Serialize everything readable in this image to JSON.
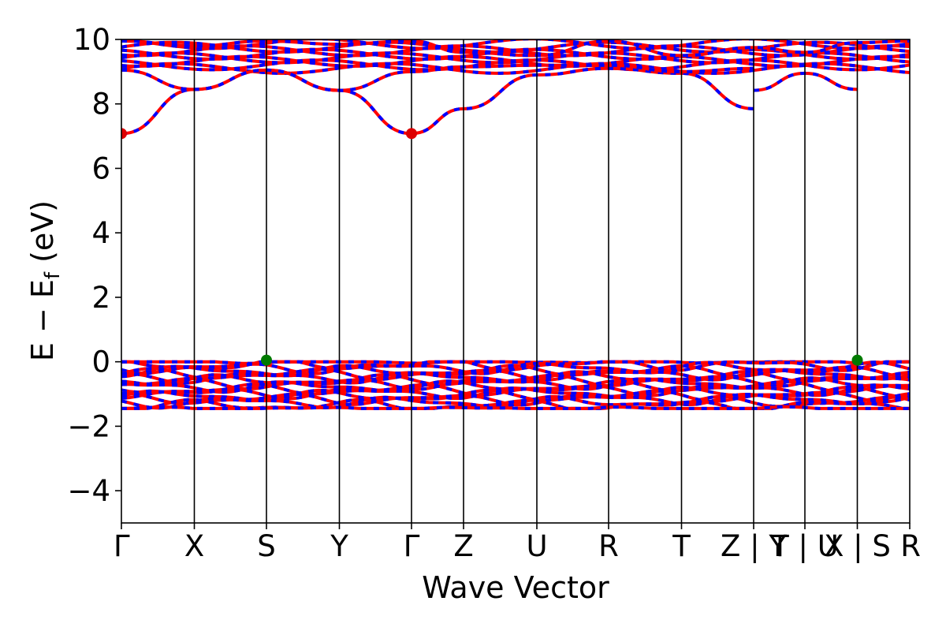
{
  "chart_data": {
    "type": "line",
    "title": "",
    "xlabel": "Wave Vector",
    "ylabel_parts": {
      "main": "E − E",
      "sub": "f",
      "unit": " (eV)"
    },
    "ylim": [
      -5,
      10
    ],
    "yticks": [
      -4,
      -2,
      0,
      2,
      4,
      6,
      8,
      10
    ],
    "ytick_labels": [
      "−4",
      "−2",
      "0",
      "2",
      "4",
      "6",
      "8",
      "10"
    ],
    "kpoints": [
      {
        "label": "Γ",
        "x": 0.0
      },
      {
        "label": "X",
        "x": 0.0925
      },
      {
        "label": "S",
        "x": 0.184
      },
      {
        "label": "Y",
        "x": 0.2765
      },
      {
        "label": "Γ",
        "x": 0.368
      },
      {
        "label": "Z",
        "x": 0.434
      },
      {
        "label": "U",
        "x": 0.527
      },
      {
        "label": "R",
        "x": 0.618
      },
      {
        "label": "T",
        "x": 0.7105
      },
      {
        "label": "Z | Y",
        "x": 0.802
      },
      {
        "label": "T | U",
        "x": 0.867
      },
      {
        "label": "X | S",
        "x": 0.9335
      },
      {
        "label": "R",
        "x": 1.0
      }
    ],
    "band_colors": {
      "spin_up": "#ff0000",
      "spin_down": "#0000ff"
    },
    "valence_band": {
      "top": 0.0,
      "bottom": -1.45
    },
    "conduction_bands": [
      {
        "name": "cb1",
        "points": [
          [
            0.0,
            7.08
          ],
          [
            0.0925,
            8.45
          ],
          [
            0.184,
            9.05
          ],
          [
            0.2765,
            8.42
          ],
          [
            0.368,
            7.08
          ],
          [
            0.434,
            7.85
          ],
          [
            0.527,
            8.9
          ],
          [
            0.618,
            9.1
          ],
          [
            0.7105,
            8.95
          ],
          [
            0.802,
            7.85
          ]
        ]
      },
      {
        "name": "cb1b",
        "points": [
          [
            0.802,
            8.42
          ],
          [
            0.867,
            8.95
          ],
          [
            0.9335,
            8.45
          ]
        ]
      },
      {
        "name": "cb2",
        "points": [
          [
            0.0,
            9.05
          ],
          [
            0.0925,
            8.45
          ],
          [
            0.184,
            9.05
          ],
          [
            0.2765,
            8.42
          ],
          [
            0.368,
            9.0
          ],
          [
            0.434,
            9.15
          ],
          [
            0.527,
            9.2
          ],
          [
            0.618,
            9.2
          ],
          [
            0.7105,
            9.0
          ],
          [
            0.802,
            9.1
          ]
        ]
      },
      {
        "name": "cb3",
        "points": [
          [
            0.0,
            9.95
          ],
          [
            0.0925,
            9.8
          ],
          [
            0.184,
            9.95
          ],
          [
            0.2765,
            9.85
          ],
          [
            0.368,
            9.95
          ],
          [
            0.434,
            9.6
          ],
          [
            0.527,
            9.5
          ],
          [
            0.618,
            9.95
          ],
          [
            0.7105,
            9.5
          ],
          [
            0.802,
            9.75
          ],
          [
            0.867,
            9.6
          ],
          [
            0.9335,
            9.9
          ],
          [
            1.0,
            9.95
          ]
        ]
      }
    ],
    "band_extrema": [
      {
        "type": "CBM",
        "x": 0.0,
        "y": 7.08,
        "color": "#dd0000"
      },
      {
        "type": "CBM",
        "x": 0.368,
        "y": 7.08,
        "color": "#dd0000"
      },
      {
        "type": "VBM",
        "x": 0.184,
        "y": 0.05,
        "color": "#007a00"
      },
      {
        "type": "VBM",
        "x": 0.9335,
        "y": 0.05,
        "color": "#007a00"
      }
    ],
    "grid": false,
    "legend": "none"
  }
}
